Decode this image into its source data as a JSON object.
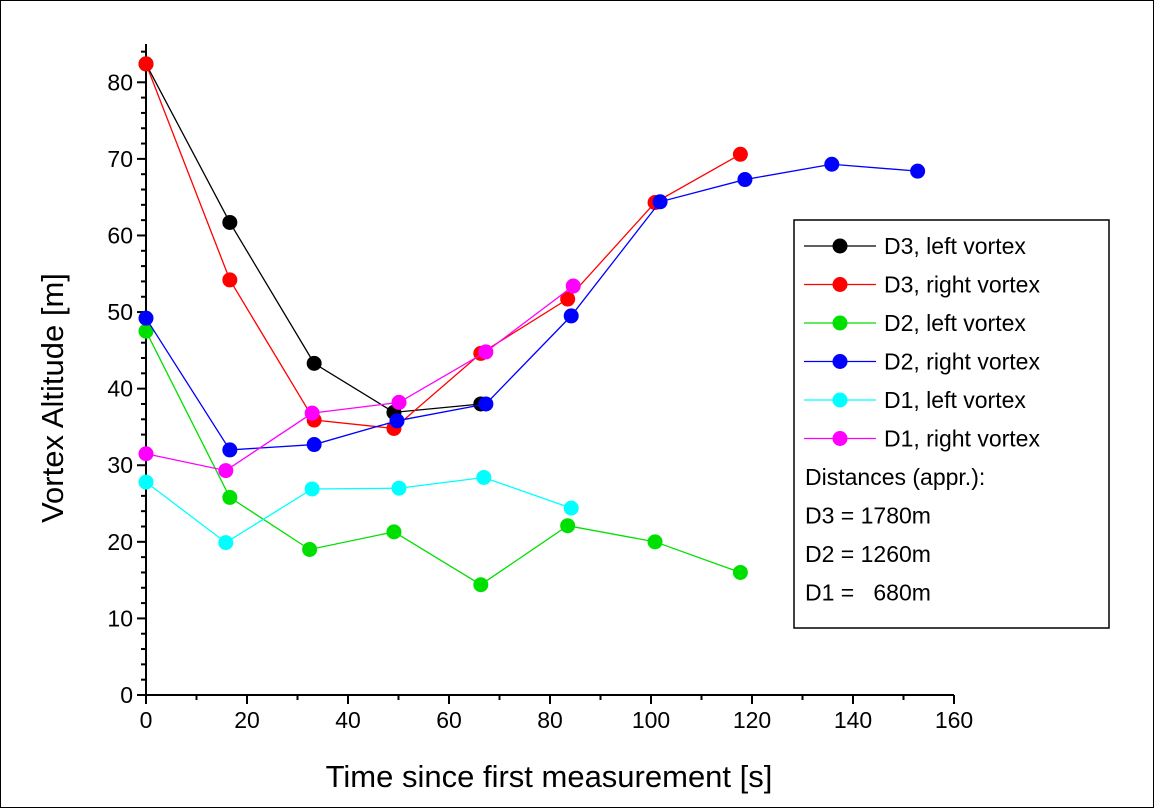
{
  "chart_data": {
    "type": "line",
    "title": "",
    "xlabel": "Time since first measurement [s]",
    "ylabel": "Vortex Altitude [m]",
    "xlim": [
      0,
      160
    ],
    "ylim": [
      0,
      85
    ],
    "grid": false,
    "legend_position": "right",
    "x_ticks": [
      "0",
      "20",
      "40",
      "60",
      "80",
      "100",
      "120",
      "140",
      "160"
    ],
    "y_ticks": [
      "0",
      "10",
      "20",
      "30",
      "40",
      "50",
      "60",
      "70",
      "80"
    ],
    "series": [
      {
        "name": "D3, left vortex",
        "color": "#000000",
        "x": [
          0,
          16.6,
          33.3,
          49.1,
          66.3
        ],
        "y": [
          82.4,
          61.7,
          43.3,
          36.9,
          38.0
        ]
      },
      {
        "name": "D3, right vortex",
        "color": "#ff0000",
        "x": [
          0,
          16.6,
          33.3,
          49.1,
          66.3,
          83.5,
          100.8,
          117.7
        ],
        "y": [
          82.4,
          54.2,
          35.9,
          34.8,
          44.6,
          51.7,
          64.3,
          70.6
        ]
      },
      {
        "name": "D2, left vortex",
        "color": "#00e000",
        "x": [
          0,
          16.6,
          32.4,
          49.1,
          66.3,
          83.5,
          100.8,
          117.7
        ],
        "y": [
          47.5,
          25.8,
          19.0,
          21.3,
          14.4,
          22.1,
          20.0,
          16.0
        ]
      },
      {
        "name": "D2, right vortex",
        "color": "#0000ff",
        "x": [
          0,
          16.6,
          33.3,
          49.7,
          67.3,
          84.2,
          101.8,
          118.6,
          135.8,
          152.8
        ],
        "y": [
          49.2,
          32.0,
          32.7,
          35.8,
          38.0,
          49.5,
          64.4,
          67.3,
          69.3,
          68.4
        ]
      },
      {
        "name": "D1, left vortex",
        "color": "#00ffff",
        "x": [
          0,
          15.8,
          32.9,
          50.1,
          66.9,
          84.2
        ],
        "y": [
          27.8,
          19.9,
          26.9,
          27.0,
          28.4,
          24.4
        ]
      },
      {
        "name": "D1, right vortex",
        "color": "#ff00ff",
        "x": [
          0,
          15.8,
          32.9,
          50.1,
          67.3,
          84.6
        ],
        "y": [
          31.5,
          29.3,
          36.8,
          38.2,
          44.8,
          53.4
        ]
      }
    ],
    "legend_notes": [
      "Distances (appr.):",
      "D3 = 1780m",
      "D2 = 1260m",
      "D1 =   680m"
    ]
  }
}
